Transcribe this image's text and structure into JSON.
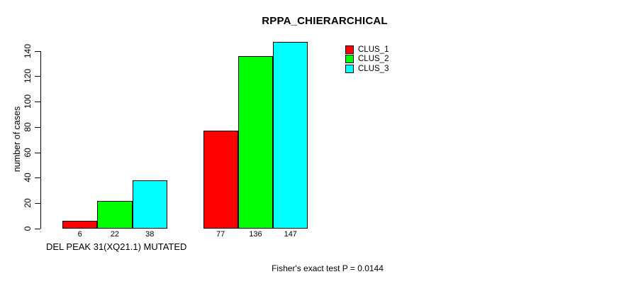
{
  "title": "RPPA_CHIERARCHICAL",
  "chart_data": {
    "type": "bar",
    "title": "RPPA_CHIERARCHICAL",
    "xlabel": "DEL PEAK 31(XQ21.1) MUTATED",
    "ylabel": "number of cases",
    "ylim": [
      0,
      140
    ],
    "y_ticks": [
      0,
      20,
      40,
      60,
      80,
      100,
      120,
      140
    ],
    "grid": false,
    "categories": [
      "DEL PEAK 31(XQ21.1) MUTATED",
      ""
    ],
    "series": [
      {
        "name": "CLUS_1",
        "color": "#ff0000",
        "values": [
          6,
          77
        ]
      },
      {
        "name": "CLUS_2",
        "color": "#00ff00",
        "values": [
          22,
          136
        ]
      },
      {
        "name": "CLUS_3",
        "color": "#00ffff",
        "values": [
          38,
          147
        ]
      }
    ],
    "bar_value_labels": [
      [
        6,
        22,
        38
      ],
      [
        77,
        136,
        147
      ]
    ],
    "legend": {
      "position": "top-right",
      "entries": [
        "CLUS_1",
        "CLUS_2",
        "CLUS_3"
      ]
    },
    "annotation": "Fisher's exact test P = 0.0144"
  },
  "colors": {
    "background": "#ffffff",
    "axis": "#000000",
    "text": "#000000",
    "clus_1": "#ff0000",
    "clus_2": "#00ff00",
    "clus_3": "#00ffff"
  }
}
